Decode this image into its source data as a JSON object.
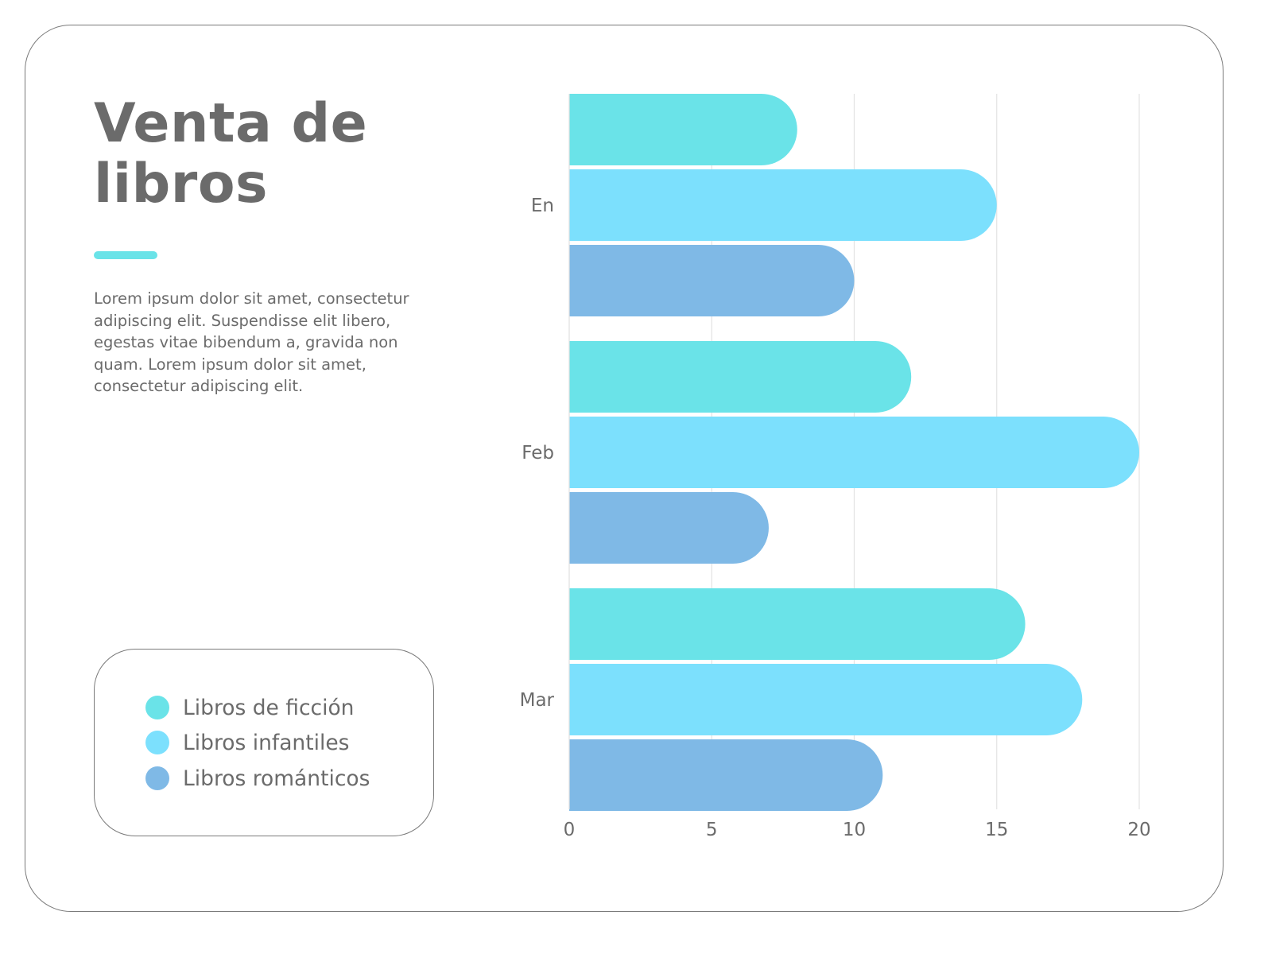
{
  "title_lines": [
    "Venta de",
    "libros"
  ],
  "description": "Lorem ipsum dolor sit amet, consectetur adipiscing elit. Suspendisse elit libero, egestas vitae bibendum a, gravida non quam. Lorem ipsum dolor sit amet, consectetur adipiscing elit.",
  "colors": {
    "accent": "#6ae3e8",
    "text": "#6b6b6b",
    "grid": "#e3e3e3"
  },
  "chart_data": {
    "type": "bar",
    "orientation": "horizontal",
    "title": "Venta de libros",
    "categories": [
      "En",
      "Feb",
      "Mar"
    ],
    "series": [
      {
        "name": "Libros de ficción",
        "color": "#6ae3e8",
        "values": [
          8,
          12,
          16
        ]
      },
      {
        "name": "Libros infantiles",
        "color": "#7ce0fd",
        "values": [
          15,
          20,
          18
        ]
      },
      {
        "name": "Libros románticos",
        "color": "#7fb9e6",
        "values": [
          10,
          7,
          11
        ]
      }
    ],
    "xlim": [
      0,
      20
    ],
    "xticks": [
      0,
      5,
      10,
      15,
      20
    ],
    "grid": true,
    "legend_placement": "bottom-left"
  }
}
